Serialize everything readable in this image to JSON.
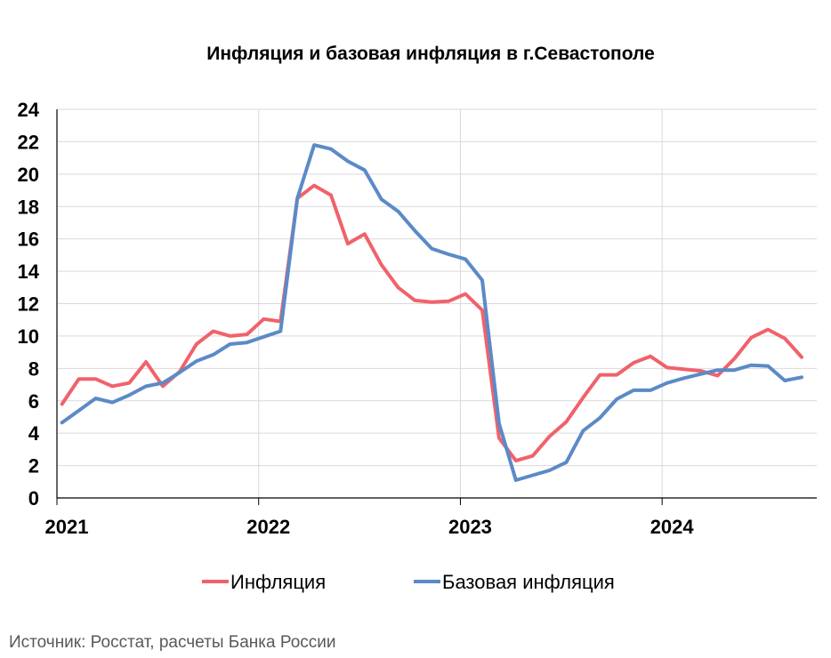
{
  "source": "Источник: Росстат, расчеты Банка России",
  "chart_data": {
    "type": "line",
    "title": "Инфляция и базовая инфляция в г.Севастополе",
    "xlabel": "",
    "ylabel": "",
    "ylim": [
      0,
      24
    ],
    "yticks": [
      "0",
      "2",
      "4",
      "6",
      "8",
      "10",
      "12",
      "14",
      "16",
      "18",
      "20",
      "22",
      "24"
    ],
    "xtick_labels": [
      "2021",
      "2022",
      "2023",
      "2024"
    ],
    "grid": "horizontal",
    "legend_position": "bottom",
    "x": [
      "2021-01",
      "2021-02",
      "2021-03",
      "2021-04",
      "2021-05",
      "2021-06",
      "2021-07",
      "2021-08",
      "2021-09",
      "2021-10",
      "2021-11",
      "2021-12",
      "2022-01",
      "2022-02",
      "2022-03",
      "2022-04",
      "2022-05",
      "2022-06",
      "2022-07",
      "2022-08",
      "2022-09",
      "2022-10",
      "2022-11",
      "2022-12",
      "2023-01",
      "2023-02",
      "2023-03",
      "2023-04",
      "2023-05",
      "2023-06",
      "2023-07",
      "2023-08",
      "2023-09",
      "2023-10",
      "2023-11",
      "2023-12",
      "2024-01",
      "2024-02",
      "2024-03",
      "2024-04",
      "2024-05",
      "2024-06",
      "2024-07",
      "2024-08",
      "2024-09"
    ],
    "series": [
      {
        "name": "Инфляция",
        "color": "#f0626b",
        "values": [
          5.8,
          7.35,
          7.35,
          6.9,
          7.1,
          8.4,
          6.9,
          7.8,
          9.5,
          10.3,
          10.0,
          10.1,
          11.05,
          10.9,
          18.5,
          19.3,
          18.7,
          15.7,
          16.3,
          14.4,
          13.0,
          12.2,
          12.1,
          12.15,
          12.6,
          11.6,
          3.7,
          2.3,
          2.6,
          3.8,
          4.7,
          6.2,
          7.6,
          7.6,
          8.35,
          8.75,
          8.05,
          7.95,
          7.85,
          7.55,
          8.6,
          9.9,
          10.4,
          9.85,
          8.7
        ]
      },
      {
        "name": "Базовая инфляция",
        "color": "#5b8ac7",
        "values": [
          4.65,
          5.4,
          6.15,
          5.9,
          6.35,
          6.9,
          7.1,
          7.75,
          8.45,
          8.85,
          9.5,
          9.6,
          9.95,
          10.3,
          18.5,
          21.8,
          21.55,
          20.8,
          20.25,
          18.45,
          17.7,
          16.5,
          15.4,
          15.05,
          14.75,
          13.45,
          4.6,
          1.1,
          1.4,
          1.7,
          2.2,
          4.15,
          4.95,
          6.1,
          6.65,
          6.65,
          7.1,
          7.4,
          7.65,
          7.9,
          7.9,
          8.2,
          8.15,
          7.25,
          7.45
        ]
      }
    ]
  }
}
